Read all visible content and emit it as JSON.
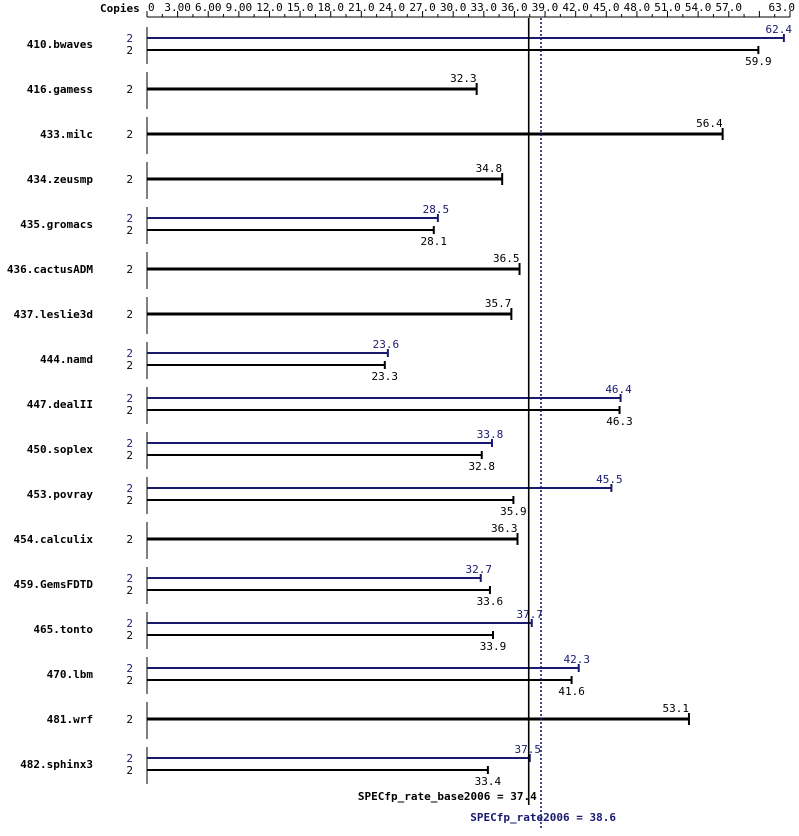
{
  "chart_data": {
    "type": "bar",
    "orientation": "horizontal",
    "x_axis_header": "Copies",
    "x_tick_labels": [
      "0",
      "3.00",
      "6.00",
      "9.00",
      "12.0",
      "15.0",
      "18.0",
      "21.0",
      "24.0",
      "27.0",
      "30.0",
      "33.0",
      "36.0",
      "39.0",
      "42.0",
      "45.0",
      "48.0",
      "51.0",
      "54.0",
      "57.0",
      "63.0"
    ],
    "xlim": [
      0,
      63
    ],
    "colors": {
      "base": "#000000",
      "peak": "#191970"
    },
    "benchmarks": [
      {
        "name": "410.bwaves",
        "rows": [
          {
            "kind": "peak",
            "copies": "2",
            "value": 62.4,
            "label": "62.4"
          },
          {
            "kind": "base",
            "copies": "2",
            "value": 59.9,
            "label": "59.9"
          }
        ]
      },
      {
        "name": "416.gamess",
        "rows": [
          {
            "kind": "both",
            "copies": "2",
            "value": 32.3,
            "label": "32.3"
          }
        ]
      },
      {
        "name": "433.milc",
        "rows": [
          {
            "kind": "both",
            "copies": "2",
            "value": 56.4,
            "label": "56.4"
          }
        ]
      },
      {
        "name": "434.zeusmp",
        "rows": [
          {
            "kind": "both",
            "copies": "2",
            "value": 34.8,
            "label": "34.8"
          }
        ]
      },
      {
        "name": "435.gromacs",
        "rows": [
          {
            "kind": "peak",
            "copies": "2",
            "value": 28.5,
            "label": "28.5"
          },
          {
            "kind": "base",
            "copies": "2",
            "value": 28.1,
            "label": "28.1"
          }
        ]
      },
      {
        "name": "436.cactusADM",
        "rows": [
          {
            "kind": "both",
            "copies": "2",
            "value": 36.5,
            "label": "36.5"
          }
        ]
      },
      {
        "name": "437.leslie3d",
        "rows": [
          {
            "kind": "both",
            "copies": "2",
            "value": 35.7,
            "label": "35.7"
          }
        ]
      },
      {
        "name": "444.namd",
        "rows": [
          {
            "kind": "peak",
            "copies": "2",
            "value": 23.6,
            "label": "23.6"
          },
          {
            "kind": "base",
            "copies": "2",
            "value": 23.3,
            "label": "23.3"
          }
        ]
      },
      {
        "name": "447.dealII",
        "rows": [
          {
            "kind": "peak",
            "copies": "2",
            "value": 46.4,
            "label": "46.4"
          },
          {
            "kind": "base",
            "copies": "2",
            "value": 46.3,
            "label": "46.3"
          }
        ]
      },
      {
        "name": "450.soplex",
        "rows": [
          {
            "kind": "peak",
            "copies": "2",
            "value": 33.8,
            "label": "33.8"
          },
          {
            "kind": "base",
            "copies": "2",
            "value": 32.8,
            "label": "32.8"
          }
        ]
      },
      {
        "name": "453.povray",
        "rows": [
          {
            "kind": "peak",
            "copies": "2",
            "value": 45.5,
            "label": "45.5"
          },
          {
            "kind": "base",
            "copies": "2",
            "value": 35.9,
            "label": "35.9"
          }
        ]
      },
      {
        "name": "454.calculix",
        "rows": [
          {
            "kind": "both",
            "copies": "2",
            "value": 36.3,
            "label": "36.3"
          }
        ]
      },
      {
        "name": "459.GemsFDTD",
        "rows": [
          {
            "kind": "peak",
            "copies": "2",
            "value": 32.7,
            "label": "32.7"
          },
          {
            "kind": "base",
            "copies": "2",
            "value": 33.6,
            "label": "33.6"
          }
        ]
      },
      {
        "name": "465.tonto",
        "rows": [
          {
            "kind": "peak",
            "copies": "2",
            "value": 37.7,
            "label": "37.7"
          },
          {
            "kind": "base",
            "copies": "2",
            "value": 33.9,
            "label": "33.9"
          }
        ]
      },
      {
        "name": "470.lbm",
        "rows": [
          {
            "kind": "peak",
            "copies": "2",
            "value": 42.3,
            "label": "42.3"
          },
          {
            "kind": "base",
            "copies": "2",
            "value": 41.6,
            "label": "41.6"
          }
        ]
      },
      {
        "name": "481.wrf",
        "rows": [
          {
            "kind": "both",
            "copies": "2",
            "value": 53.1,
            "label": "53.1"
          }
        ]
      },
      {
        "name": "482.sphinx3",
        "rows": [
          {
            "kind": "peak",
            "copies": "2",
            "value": 37.5,
            "label": "37.5"
          },
          {
            "kind": "base",
            "copies": "2",
            "value": 33.4,
            "label": "33.4"
          }
        ]
      }
    ],
    "reference_lines": [
      {
        "kind": "base",
        "value": 37.4,
        "label": "SPECfp_rate_base2006 = 37.4"
      },
      {
        "kind": "peak",
        "value": 38.6,
        "label": "SPECfp_rate2006 = 38.6"
      }
    ]
  }
}
